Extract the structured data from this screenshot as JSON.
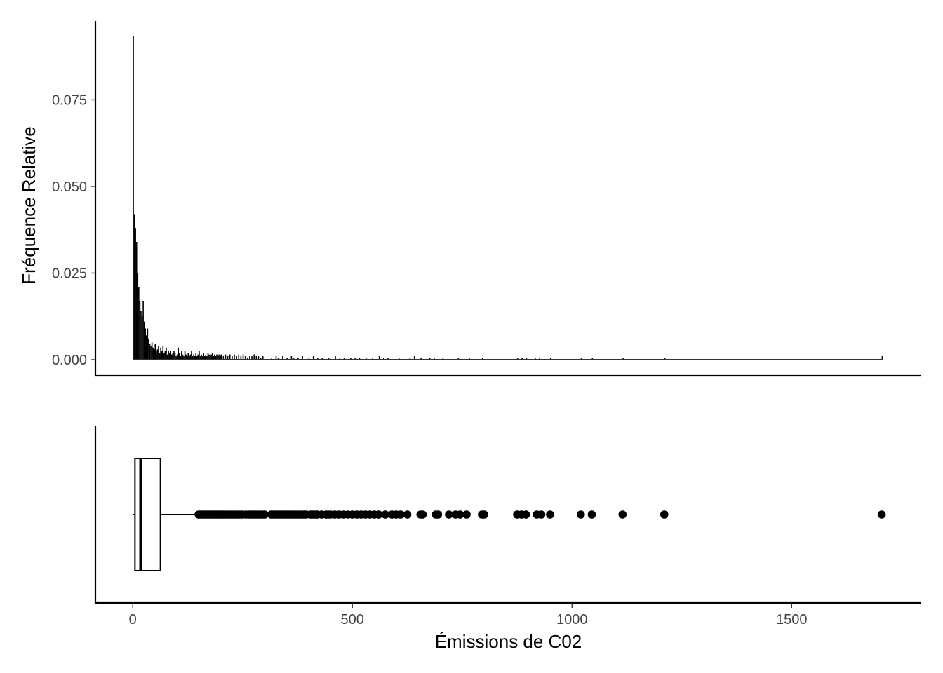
{
  "chart_data": [
    {
      "type": "bar",
      "subtype": "histogram",
      "xlabel": "",
      "ylabel": "Fréquence Relative",
      "xlim": [
        -85,
        1795
      ],
      "ylim": [
        0,
        0.0935
      ],
      "y_ticks": [
        0,
        0.025,
        0.05,
        0.075
      ],
      "y_tick_labels": [
        "0.000",
        "0.025",
        "0.050",
        "0.075"
      ],
      "grid": false,
      "bin_width": 2.5,
      "bins": [
        {
          "x": 0,
          "y": 0.0935
        },
        {
          "x": 2.5,
          "y": 0.042
        },
        {
          "x": 5,
          "y": 0.038
        },
        {
          "x": 7.5,
          "y": 0.034
        },
        {
          "x": 10,
          "y": 0.025
        },
        {
          "x": 12.5,
          "y": 0.021
        },
        {
          "x": 15,
          "y": 0.017
        },
        {
          "x": 17.5,
          "y": 0.014
        },
        {
          "x": 20,
          "y": 0.0125
        },
        {
          "x": 22.5,
          "y": 0.017
        },
        {
          "x": 25,
          "y": 0.011
        },
        {
          "x": 27.5,
          "y": 0.009
        },
        {
          "x": 30,
          "y": 0.007
        },
        {
          "x": 32.5,
          "y": 0.009
        },
        {
          "x": 35,
          "y": 0.006
        },
        {
          "x": 37.5,
          "y": 0.0045
        },
        {
          "x": 40,
          "y": 0.004
        },
        {
          "x": 42.5,
          "y": 0.005
        },
        {
          "x": 45,
          "y": 0.0035
        },
        {
          "x": 47.5,
          "y": 0.003
        },
        {
          "x": 50,
          "y": 0.0045
        },
        {
          "x": 52.5,
          "y": 0.0025
        },
        {
          "x": 55,
          "y": 0.003
        },
        {
          "x": 57.5,
          "y": 0.004
        },
        {
          "x": 60,
          "y": 0.002
        },
        {
          "x": 62.5,
          "y": 0.0035
        },
        {
          "x": 65,
          "y": 0.0025
        },
        {
          "x": 67.5,
          "y": 0.004
        },
        {
          "x": 70,
          "y": 0.002
        },
        {
          "x": 72.5,
          "y": 0.0025
        },
        {
          "x": 75,
          "y": 0.0035
        },
        {
          "x": 77.5,
          "y": 0.0015
        },
        {
          "x": 80,
          "y": 0.0025
        },
        {
          "x": 82.5,
          "y": 0.002
        },
        {
          "x": 85,
          "y": 0.0025
        },
        {
          "x": 87.5,
          "y": 0.0015
        },
        {
          "x": 90,
          "y": 0.002
        },
        {
          "x": 92.5,
          "y": 0.0025
        },
        {
          "x": 95,
          "y": 0.002
        },
        {
          "x": 97.5,
          "y": 0.001
        },
        {
          "x": 100,
          "y": 0.0015
        },
        {
          "x": 102.5,
          "y": 0.0035
        },
        {
          "x": 105,
          "y": 0.002
        },
        {
          "x": 107.5,
          "y": 0.001
        },
        {
          "x": 110,
          "y": 0.0025
        },
        {
          "x": 112.5,
          "y": 0.0015
        },
        {
          "x": 115,
          "y": 0.001
        },
        {
          "x": 117.5,
          "y": 0.0025
        },
        {
          "x": 120,
          "y": 0.0015
        },
        {
          "x": 122.5,
          "y": 0.001
        },
        {
          "x": 125,
          "y": 0.002
        },
        {
          "x": 127.5,
          "y": 0.001
        },
        {
          "x": 130,
          "y": 0.0015
        },
        {
          "x": 132.5,
          "y": 0.0025
        },
        {
          "x": 135,
          "y": 0.001
        },
        {
          "x": 137.5,
          "y": 0.0015
        },
        {
          "x": 140,
          "y": 0.001
        },
        {
          "x": 142.5,
          "y": 0.002
        },
        {
          "x": 145,
          "y": 0.001
        },
        {
          "x": 147.5,
          "y": 0.0015
        },
        {
          "x": 150,
          "y": 0.0025
        },
        {
          "x": 152.5,
          "y": 0.001
        },
        {
          "x": 155,
          "y": 0.0015
        },
        {
          "x": 157.5,
          "y": 0.001
        },
        {
          "x": 160,
          "y": 0.002
        },
        {
          "x": 162.5,
          "y": 0.001
        },
        {
          "x": 165,
          "y": 0.0015
        },
        {
          "x": 167.5,
          "y": 0.001
        },
        {
          "x": 170,
          "y": 0.002
        },
        {
          "x": 172.5,
          "y": 0.0015
        },
        {
          "x": 175,
          "y": 0.001
        },
        {
          "x": 177.5,
          "y": 0.0015
        },
        {
          "x": 180,
          "y": 0.002
        },
        {
          "x": 182.5,
          "y": 0.001
        },
        {
          "x": 185,
          "y": 0.0015
        },
        {
          "x": 187.5,
          "y": 0.001
        },
        {
          "x": 190,
          "y": 0.0015
        },
        {
          "x": 192.5,
          "y": 0.001
        },
        {
          "x": 195,
          "y": 0.0015
        },
        {
          "x": 197.5,
          "y": 0.001
        },
        {
          "x": 200,
          "y": 0.0015
        },
        {
          "x": 205,
          "y": 0.001
        },
        {
          "x": 210,
          "y": 0.0015
        },
        {
          "x": 215,
          "y": 0.001
        },
        {
          "x": 220,
          "y": 0.0015
        },
        {
          "x": 225,
          "y": 0.001
        },
        {
          "x": 230,
          "y": 0.0015
        },
        {
          "x": 235,
          "y": 0.001
        },
        {
          "x": 240,
          "y": 0.0015
        },
        {
          "x": 245,
          "y": 0.001
        },
        {
          "x": 250,
          "y": 0.0015
        },
        {
          "x": 255,
          "y": 0.001
        },
        {
          "x": 260,
          "y": 0.0005
        },
        {
          "x": 265,
          "y": 0.001
        },
        {
          "x": 270,
          "y": 0.001
        },
        {
          "x": 275,
          "y": 0.0015
        },
        {
          "x": 280,
          "y": 0.001
        },
        {
          "x": 285,
          "y": 0.001
        },
        {
          "x": 290,
          "y": 0.0005
        },
        {
          "x": 295,
          "y": 0.001
        },
        {
          "x": 315,
          "y": 0.0005
        },
        {
          "x": 325,
          "y": 0.001
        },
        {
          "x": 330,
          "y": 0.0005
        },
        {
          "x": 340,
          "y": 0.001
        },
        {
          "x": 350,
          "y": 0.0005
        },
        {
          "x": 360,
          "y": 0.001
        },
        {
          "x": 365,
          "y": 0.0005
        },
        {
          "x": 375,
          "y": 0.0005
        },
        {
          "x": 385,
          "y": 0.001
        },
        {
          "x": 400,
          "y": 0.0005
        },
        {
          "x": 410,
          "y": 0.001
        },
        {
          "x": 420,
          "y": 0.0005
        },
        {
          "x": 430,
          "y": 0.0005
        },
        {
          "x": 445,
          "y": 0.0005
        },
        {
          "x": 460,
          "y": 0.001
        },
        {
          "x": 470,
          "y": 0.0005
        },
        {
          "x": 480,
          "y": 0.0005
        },
        {
          "x": 495,
          "y": 0.0005
        },
        {
          "x": 505,
          "y": 0.0005
        },
        {
          "x": 515,
          "y": 0.0005
        },
        {
          "x": 530,
          "y": 0.0005
        },
        {
          "x": 545,
          "y": 0.0005
        },
        {
          "x": 560,
          "y": 0.001
        },
        {
          "x": 570,
          "y": 0.0005
        },
        {
          "x": 580,
          "y": 0.0005
        },
        {
          "x": 605,
          "y": 0.0005
        },
        {
          "x": 630,
          "y": 0.0005
        },
        {
          "x": 640,
          "y": 0.001
        },
        {
          "x": 655,
          "y": 0.0005
        },
        {
          "x": 675,
          "y": 0.0005
        },
        {
          "x": 685,
          "y": 0.0005
        },
        {
          "x": 705,
          "y": 0.0005
        },
        {
          "x": 740,
          "y": 0.0005
        },
        {
          "x": 765,
          "y": 0.0005
        },
        {
          "x": 795,
          "y": 0.0005
        },
        {
          "x": 875,
          "y": 0.0005
        },
        {
          "x": 885,
          "y": 0.0005
        },
        {
          "x": 895,
          "y": 0.0005
        },
        {
          "x": 915,
          "y": 0.0005
        },
        {
          "x": 925,
          "y": 0.0005
        },
        {
          "x": 950,
          "y": 0.0005
        },
        {
          "x": 1020,
          "y": 0.0005
        },
        {
          "x": 1045,
          "y": 0.0005
        },
        {
          "x": 1115,
          "y": 0.0005
        },
        {
          "x": 1210,
          "y": 0.0005
        },
        {
          "x": 1705,
          "y": 0.001
        }
      ]
    },
    {
      "type": "boxplot",
      "orientation": "horizontal",
      "xlabel": "Émissions de C02",
      "ylabel": "",
      "xlim": [
        -85,
        1795
      ],
      "x_ticks": [
        0,
        500,
        1000,
        1500
      ],
      "x_tick_labels": [
        "0",
        "500",
        "1000",
        "1500"
      ],
      "grid": false,
      "min": 0,
      "q1": 5,
      "median": 18,
      "q3": 63,
      "whisker_high": 150,
      "outliers": [
        150,
        154,
        158,
        162,
        166,
        170,
        174,
        178,
        182,
        186,
        190,
        194,
        198,
        202,
        206,
        210,
        215,
        220,
        225,
        230,
        235,
        240,
        245,
        250,
        258,
        265,
        270,
        275,
        280,
        285,
        290,
        295,
        300,
        315,
        320,
        325,
        330,
        335,
        340,
        345,
        350,
        355,
        360,
        365,
        370,
        375,
        380,
        385,
        390,
        395,
        405,
        410,
        415,
        420,
        430,
        440,
        445,
        450,
        460,
        470,
        480,
        490,
        500,
        510,
        520,
        530,
        540,
        550,
        560,
        575,
        590,
        600,
        610,
        625,
        655,
        660,
        690,
        695,
        720,
        735,
        745,
        760,
        795,
        800,
        875,
        885,
        895,
        920,
        930,
        950,
        1020,
        1045,
        1115,
        1210,
        1705
      ]
    }
  ]
}
